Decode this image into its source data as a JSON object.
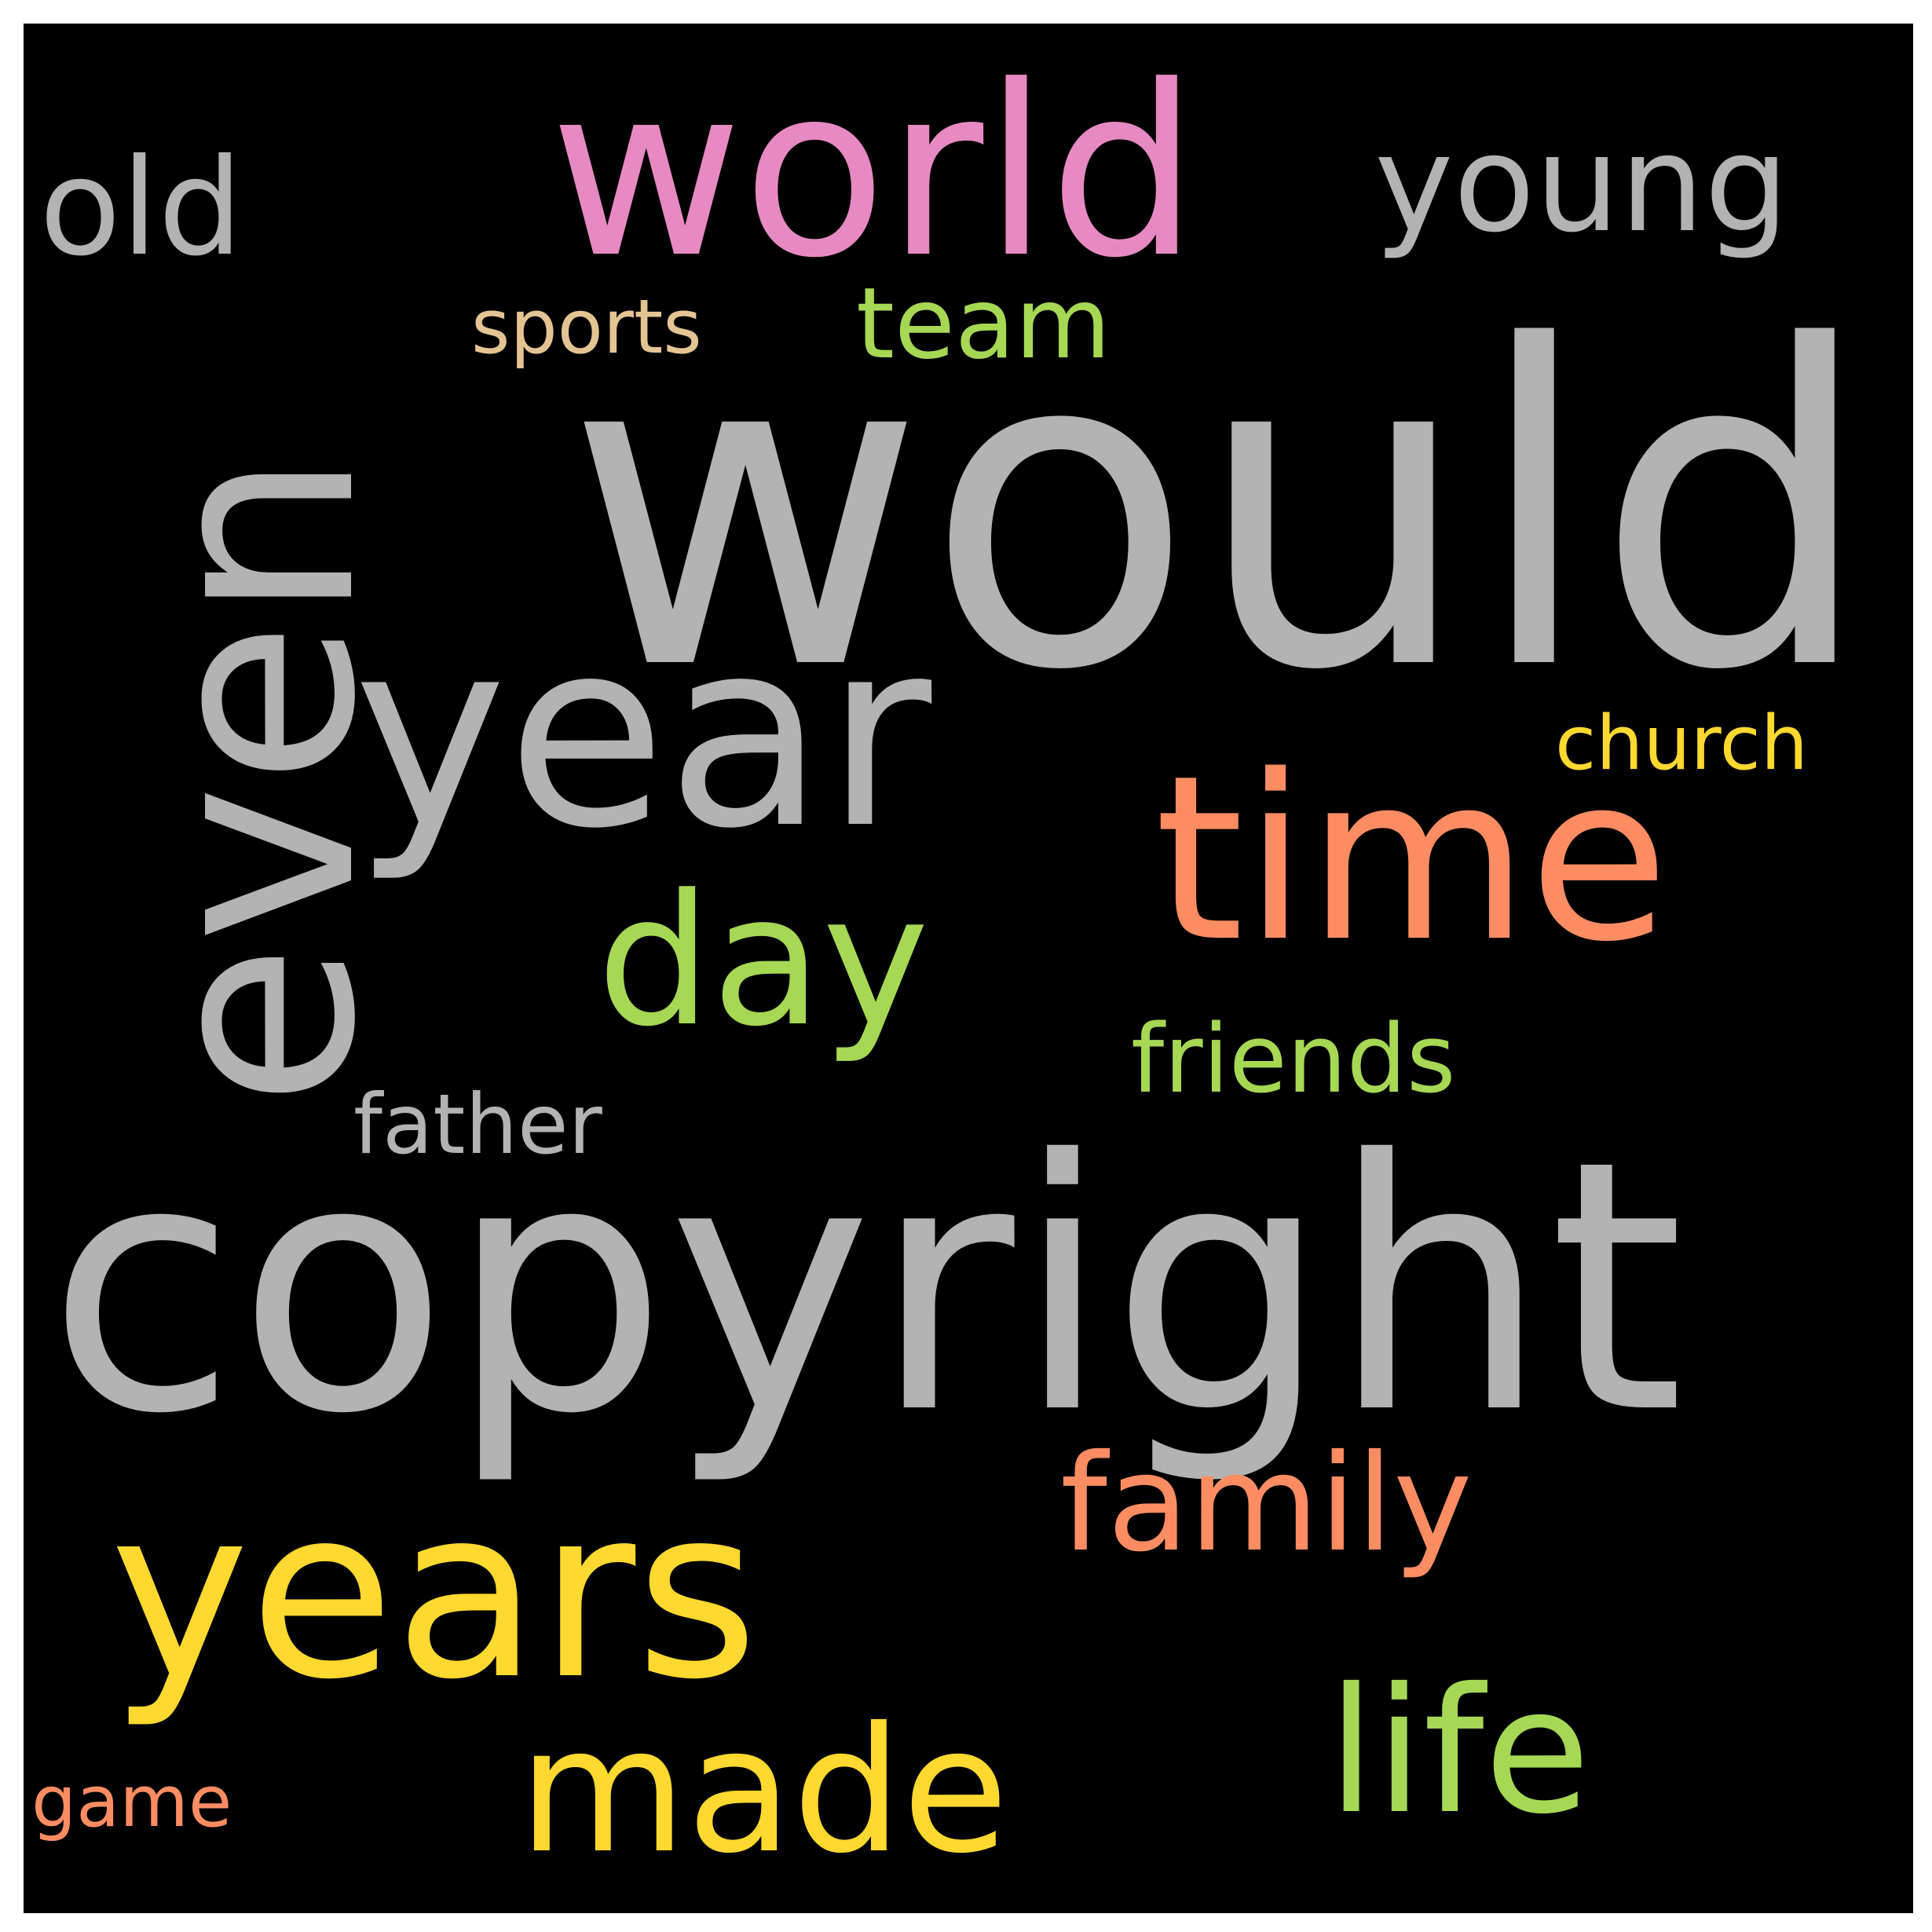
{
  "words": [
    {
      "text": "would",
      "color": "#b3b3b3"
    },
    {
      "text": "copyright",
      "color": "#b3b3b3"
    },
    {
      "text": "even",
      "color": "#b3b3b3"
    },
    {
      "text": "year",
      "color": "#b3b3b3"
    },
    {
      "text": "world",
      "color": "#e78ac3"
    },
    {
      "text": "time",
      "color": "#fc8d62"
    },
    {
      "text": "years",
      "color": "#ffd92f"
    },
    {
      "text": "day",
      "color": "#a6d854"
    },
    {
      "text": "made",
      "color": "#ffd92f"
    },
    {
      "text": "life",
      "color": "#a6d854"
    },
    {
      "text": "family",
      "color": "#fc8d62"
    },
    {
      "text": "young",
      "color": "#b3b3b3"
    },
    {
      "text": "old",
      "color": "#b3b3b3"
    },
    {
      "text": "team",
      "color": "#a6d854"
    },
    {
      "text": "friends",
      "color": "#a6d854"
    },
    {
      "text": "father",
      "color": "#b3b3b3"
    },
    {
      "text": "church",
      "color": "#ffd92f"
    },
    {
      "text": "sports",
      "color": "#e5c494"
    },
    {
      "text": "game",
      "color": "#fc8d62"
    }
  ]
}
